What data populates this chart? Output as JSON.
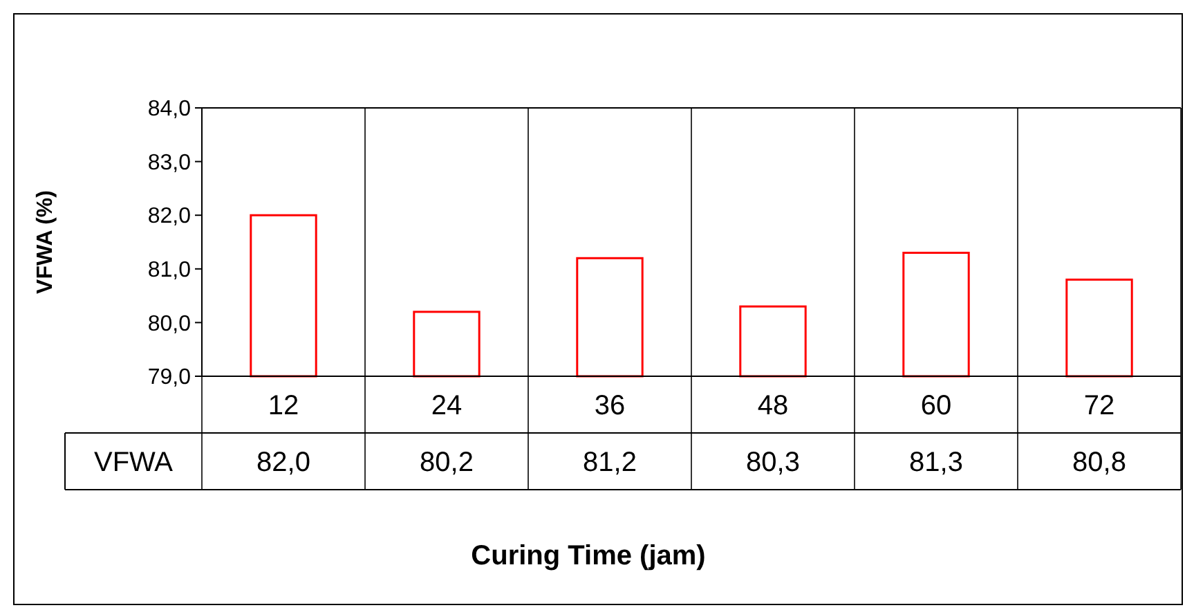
{
  "chart_data": {
    "type": "bar",
    "xlabel": "Curing Time (jam)",
    "ylabel": "VFWA (%)",
    "categories": [
      "12",
      "24",
      "36",
      "48",
      "60",
      "72"
    ],
    "series": [
      {
        "name": "VFWA",
        "color": "#ff0000",
        "values": [
          82.0,
          80.2,
          81.2,
          80.3,
          81.3,
          80.8
        ],
        "value_labels": [
          "82,0",
          "80,2",
          "81,2",
          "80,3",
          "81,3",
          "80,8"
        ]
      }
    ],
    "ylim": [
      79,
      84
    ],
    "yticks": [
      {
        "value": 79,
        "label": "79,0"
      },
      {
        "value": 80,
        "label": "80,0"
      },
      {
        "value": 81,
        "label": "81,0"
      },
      {
        "value": 82,
        "label": "82,0"
      },
      {
        "value": 83,
        "label": "83,0"
      },
      {
        "value": 84,
        "label": "84,0"
      }
    ],
    "grid": "x"
  }
}
